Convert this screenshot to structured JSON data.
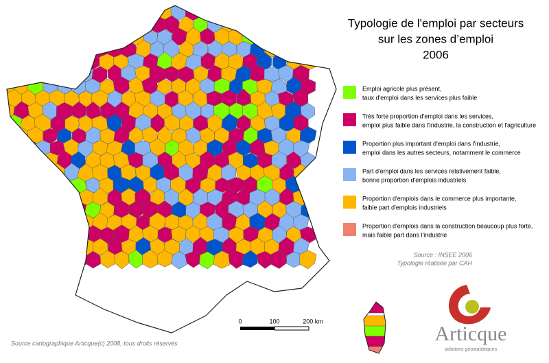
{
  "title": [
    "Typologie de l'emploi par secteurs",
    "sur les zones d’emploi",
    "2006"
  ],
  "legend": [
    {
      "color": "#80ff00",
      "lines": [
        "Emploi agricole plus présent,",
        "taux d'emploi dans les services plus faible"
      ]
    },
    {
      "color": "#cc0066",
      "lines": [
        "Très forte proportion d'emploi dans les services,",
        "emploi plus faible dans l'industrie, la construction et l'agriculture"
      ]
    },
    {
      "color": "#0055cc",
      "lines": [
        "Proportion plus important d'emploi dans l'industrie,",
        "emploi dans les autres secteurs, notamment le commerce"
      ]
    },
    {
      "color": "#88b4f4",
      "lines": [
        "Part d'emploi dans les services relativement faible,",
        "bonne proportion d'emplois industriels"
      ]
    },
    {
      "color": "#ffb800",
      "lines": [
        "Proportion d'emplois dans le commerce plus importante,",
        "faible part d'emplois industriels"
      ]
    },
    {
      "color": "#f08070",
      "lines": [
        "Proportion d'emplois dans la construction beaucoup plus forte,",
        "mais faible part dans l'industrie"
      ]
    }
  ],
  "source": [
    "Source : INSEE 2006",
    "Typologie réalisée par CAH"
  ],
  "scale": [
    "0",
    "100",
    "200 km"
  ],
  "credit": "Source cartographique Articque(c) 2008, tous droits réservés",
  "logo": {
    "name": "Articque",
    "tagline": "solutions géostatistiques"
  }
}
